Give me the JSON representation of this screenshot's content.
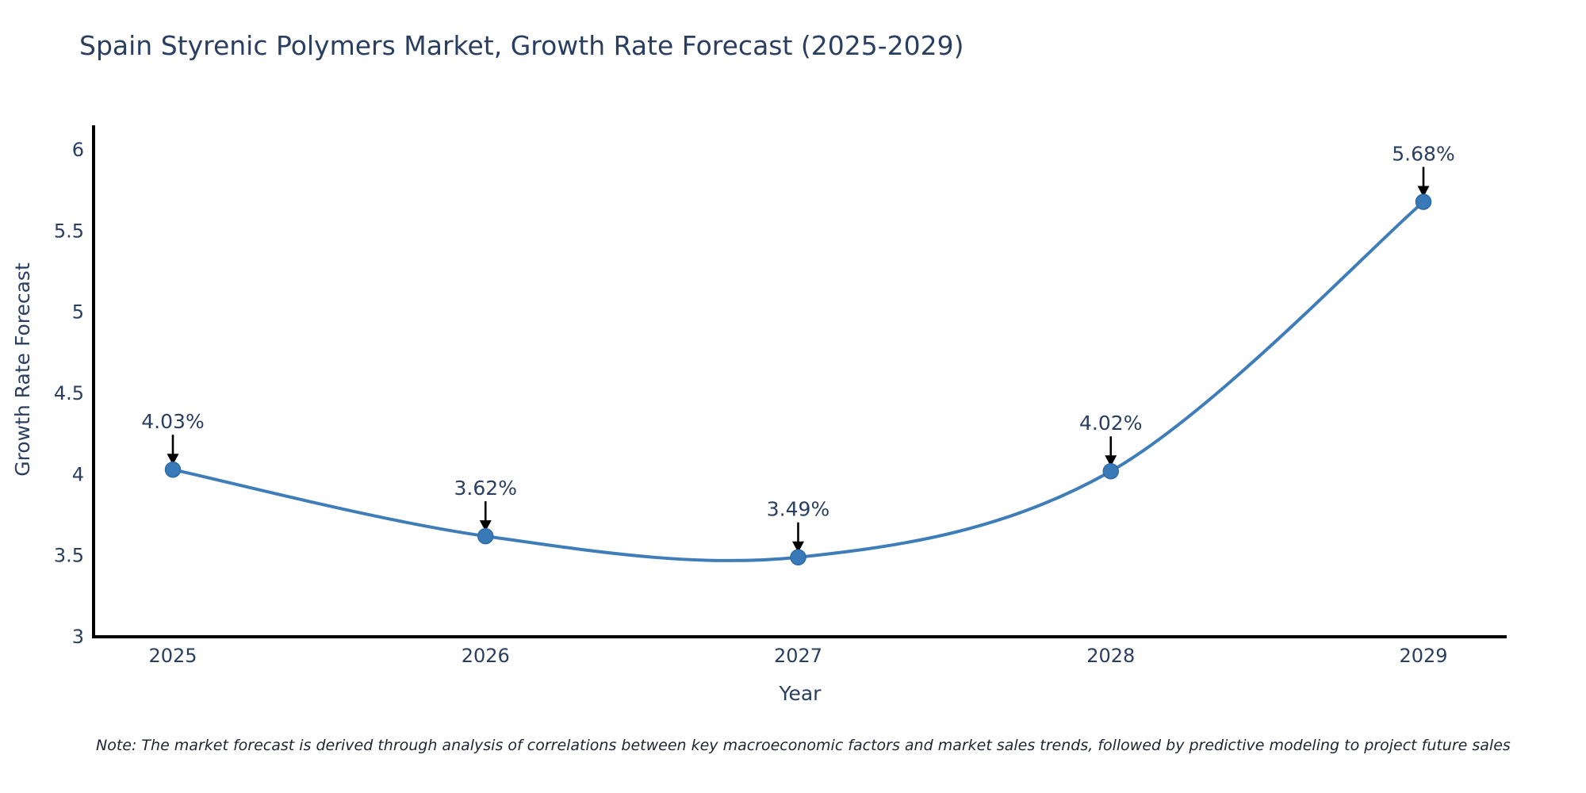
{
  "page": {
    "background": "#ffffff"
  },
  "chart_data": {
    "type": "line",
    "title": "Spain Styrenic Polymers Market, Growth Rate Forecast (2025-2029)",
    "xlabel": "Year",
    "ylabel": "Growth Rate Forecast",
    "x": [
      2025,
      2026,
      2027,
      2028,
      2029
    ],
    "values": [
      4.03,
      3.62,
      3.49,
      4.02,
      5.68
    ],
    "point_labels": [
      "4.03%",
      "3.62%",
      "3.49%",
      "4.02%",
      "5.68%"
    ],
    "series_name": "Growth Rate Forecast",
    "ylim": [
      3,
      6.16
    ],
    "yticks": [
      3,
      3.5,
      4,
      4.5,
      5,
      5.5,
      6
    ],
    "grid": false,
    "legend": "none",
    "line_shape": "spline",
    "note": "Note: The market forecast is derived through analysis of correlations between key macroeconomic factors and market sales trends, followed by predictive modeling to project future sales",
    "colors": {
      "line": "#3f7db8",
      "marker_fill": "#3a79b8",
      "marker_edge": "#2d6aa6",
      "axis": "#000000",
      "text": "#2a3f5f",
      "arrow": "#000000",
      "note_text": "#1f2430"
    }
  }
}
